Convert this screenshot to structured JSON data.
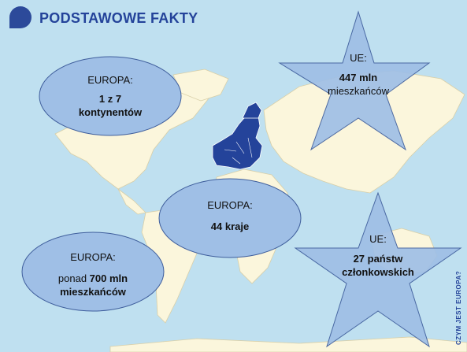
{
  "header": {
    "title": "PODSTAWOWE FAKTY"
  },
  "bubbles": {
    "continents": {
      "label": "EUROPA:",
      "value": "1 z 7\nkontynentów"
    },
    "countries": {
      "label": "EUROPA:",
      "value": "44 kraje"
    },
    "population": {
      "label": "EUROPA:",
      "prefix": "ponad ",
      "value": "700 mln",
      "suffix": "mieszkańców"
    }
  },
  "stars": {
    "eu_population": {
      "label": "UE:",
      "value": "447 mln",
      "suffix": "mieszkańców"
    },
    "eu_members": {
      "label": "UE:",
      "value": "27 państw\nczłonkowskich"
    }
  },
  "side_label": "CZYM JEST EUROPA?",
  "colors": {
    "accent": "#24439a",
    "ocean": "#bfe0f0",
    "land": "#fbf6dc",
    "shape_fill": "#9fbfe6",
    "eu": "#24439a"
  }
}
